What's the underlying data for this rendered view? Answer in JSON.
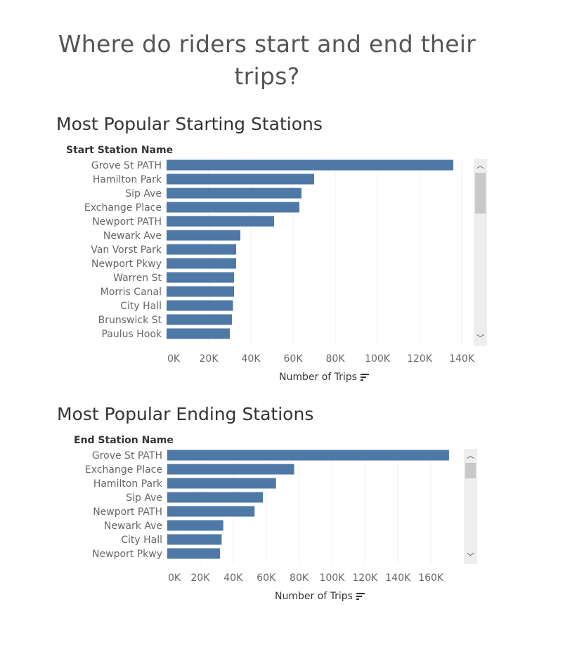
{
  "page": {
    "title": "Where do riders start and end their trips?"
  },
  "chart_data": [
    {
      "type": "bar",
      "orientation": "horizontal",
      "title": "Most Popular Starting Stations",
      "dimension_label": "Start Station Name",
      "xlabel": "Number of Trips",
      "xlim": [
        0,
        145000
      ],
      "xticks": [
        "0K",
        "20K",
        "40K",
        "60K",
        "80K",
        "100K",
        "120K",
        "140K"
      ],
      "grid": true,
      "categories": [
        "Grove St PATH",
        "Hamilton Park",
        "Sip Ave",
        "Exchange Place",
        "Newport PATH",
        "Newark Ave",
        "Van Vorst Park",
        "Newport Pkwy",
        "Warren St",
        "Morris Canal",
        "City Hall",
        "Brunswick St",
        "Paulus Hook"
      ],
      "values": [
        136000,
        70000,
        64000,
        63000,
        51000,
        35000,
        33000,
        33000,
        32000,
        32000,
        31500,
        31000,
        30000
      ],
      "color": "#4e79a7"
    },
    {
      "type": "bar",
      "orientation": "horizontal",
      "title": "Most Popular Ending Stations",
      "dimension_label": "End Station Name",
      "xlabel": "Number of Trips",
      "xlim": [
        0,
        180000
      ],
      "xticks": [
        "0K",
        "20K",
        "40K",
        "60K",
        "80K",
        "100K",
        "120K",
        "140K",
        "160K"
      ],
      "grid": true,
      "categories": [
        "Grove St PATH",
        "Exchange Place",
        "Hamilton Park",
        "Sip Ave",
        "Newport PATH",
        "Newark Ave",
        "City Hall",
        "Newport Pkwy"
      ],
      "values": [
        171000,
        77000,
        66000,
        58000,
        53000,
        34000,
        33000,
        32000
      ],
      "color": "#4e79a7"
    }
  ],
  "icons": {
    "scroll_up": "chevron-up-icon",
    "scroll_down": "chevron-down-icon",
    "sort": "sort-descending-icon"
  },
  "glyphs": {
    "up": "︿",
    "down": "﹀"
  }
}
